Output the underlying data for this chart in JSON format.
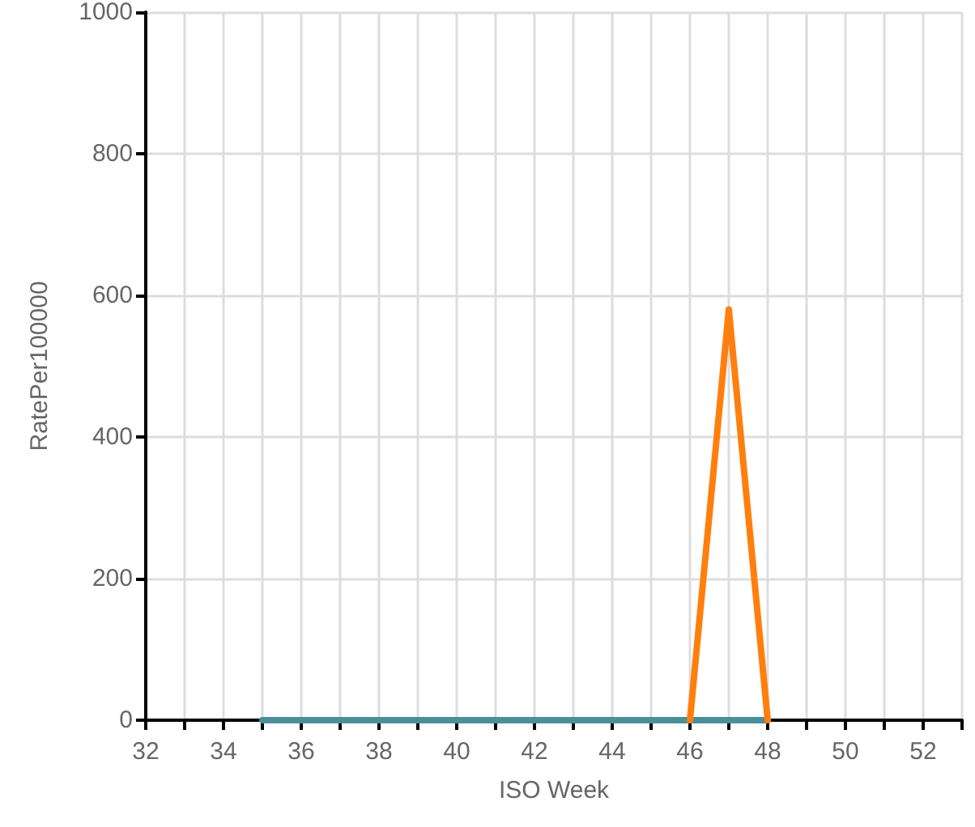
{
  "chart_data": {
    "type": "line",
    "xlabel": "ISO Week",
    "ylabel": "RatePer100000",
    "series": [
      {
        "color": "#4a8f9a",
        "x": [
          35,
          36,
          37,
          38,
          39,
          40,
          41,
          42,
          43,
          44,
          45,
          46,
          47,
          48
        ],
        "values": [
          0,
          0,
          0,
          0,
          0,
          0,
          0,
          0,
          0,
          0,
          0,
          0,
          0,
          0
        ]
      },
      {
        "color": "#ff7f0e",
        "x": [
          46,
          47,
          48
        ],
        "values": [
          0,
          580,
          0
        ]
      }
    ],
    "xlim": [
      32,
      53
    ],
    "xticks": [
      32,
      {
        "value": 33,
        "label": null
      },
      34,
      {
        "value": 35,
        "label": null
      },
      36,
      {
        "value": 37,
        "label": null
      },
      38,
      {
        "value": 39,
        "label": null
      },
      40,
      {
        "value": 41,
        "label": null
      },
      42,
      {
        "value": 43,
        "label": null
      },
      44,
      {
        "value": 45,
        "label": null
      },
      46,
      {
        "value": 47,
        "label": null
      },
      48,
      {
        "value": 49,
        "label": null
      },
      50,
      {
        "value": 51,
        "label": null
      },
      52,
      {
        "value": 53,
        "label": null
      }
    ],
    "ylim": [
      0,
      1000
    ],
    "yticks": [
      0,
      200,
      400,
      600,
      800,
      1000
    ],
    "grid": true,
    "marker": "none",
    "line_style": "solid"
  }
}
